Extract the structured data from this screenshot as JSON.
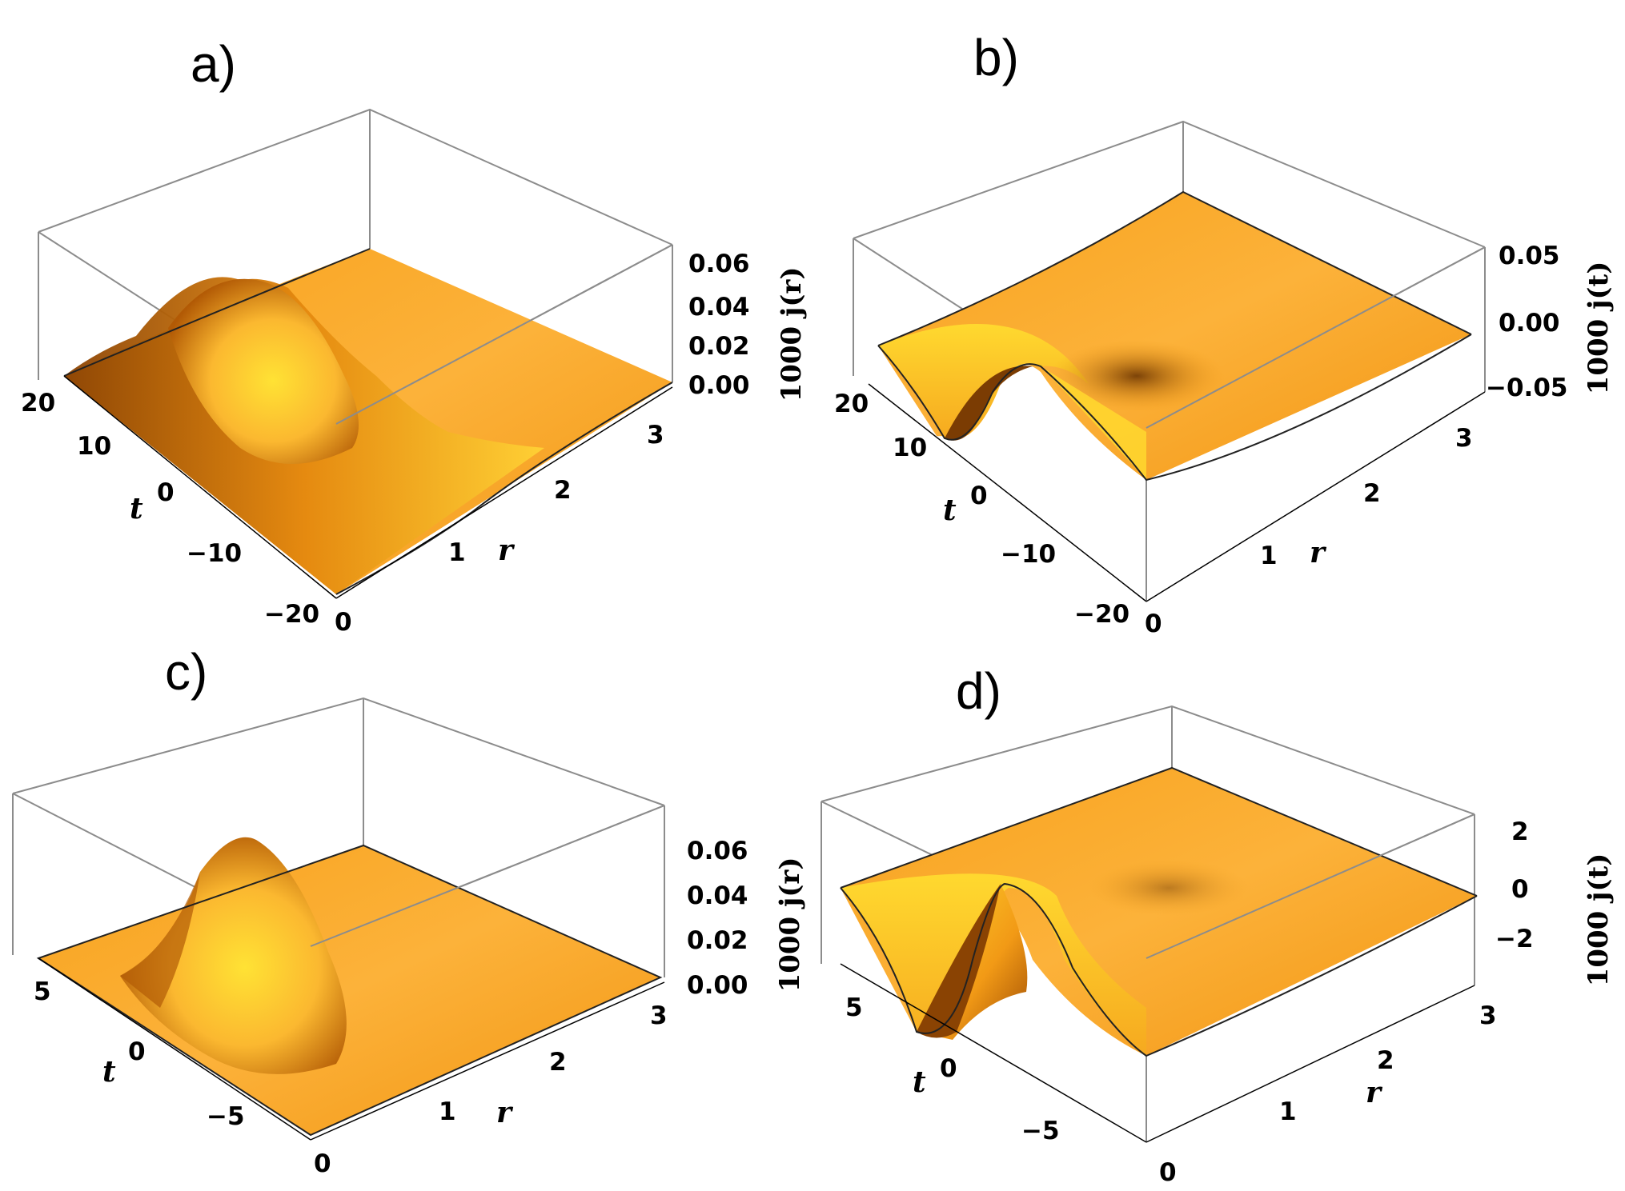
{
  "figure": {
    "panels": [
      {
        "id": "a",
        "label": "a)",
        "zlabel": "1000 j(r)",
        "r_ticks": [
          "0",
          "1",
          "2",
          "3"
        ],
        "t_ticks": [
          "−20",
          "−10",
          "0",
          "10",
          "20"
        ],
        "z_ticks": [
          "0.00",
          "0.02",
          "0.04",
          "0.06"
        ],
        "t_var": "t",
        "r_var": "r"
      },
      {
        "id": "b",
        "label": "b)",
        "zlabel": "1000 j(t)",
        "r_ticks": [
          "0",
          "1",
          "2",
          "3"
        ],
        "t_ticks": [
          "−20",
          "−10",
          "0",
          "10",
          "20"
        ],
        "z_ticks": [
          "−0.05",
          "0.00",
          "0.05"
        ],
        "t_var": "t",
        "r_var": "r"
      },
      {
        "id": "c",
        "label": "c)",
        "zlabel": "1000 j(r)",
        "r_ticks": [
          "0",
          "1",
          "2",
          "3"
        ],
        "t_ticks": [
          "−5",
          "0",
          "5"
        ],
        "z_ticks": [
          "0.00",
          "0.02",
          "0.04",
          "0.06"
        ],
        "t_var": "t",
        "r_var": "r"
      },
      {
        "id": "d",
        "label": "d)",
        "zlabel": "1000 j(t)",
        "r_ticks": [
          "0",
          "1",
          "2",
          "3"
        ],
        "t_ticks": [
          "−5",
          "0",
          "5"
        ],
        "z_ticks": [
          "−2",
          "0",
          "2"
        ],
        "t_var": "t",
        "r_var": "r"
      }
    ]
  },
  "chart_data": [
    {
      "type": "surface",
      "panel": "a)",
      "xlabel": "r",
      "ylabel": "t",
      "zlabel": "1000 j(r)",
      "xlim": [
        0,
        3
      ],
      "ylim": [
        -20,
        20
      ],
      "zlim": [
        0,
        0.06
      ],
      "peak": {
        "r": 0.3,
        "t": 0,
        "z": 0.06
      },
      "colors": {
        "surface": "#f5a623"
      }
    },
    {
      "type": "surface",
      "panel": "b)",
      "xlabel": "r",
      "ylabel": "t",
      "zlabel": "1000 j(t)",
      "xlim": [
        0,
        3
      ],
      "ylim": [
        -20,
        20
      ],
      "zlim": [
        -0.05,
        0.05
      ],
      "min": {
        "r": 0.3,
        "t": 8,
        "z": -0.05
      },
      "max": {
        "r": 0.3,
        "t": -8,
        "z": 0.05
      },
      "colors": {
        "surface": "#f5a623"
      }
    },
    {
      "type": "surface",
      "panel": "c)",
      "xlabel": "r",
      "ylabel": "t",
      "zlabel": "1000 j(r)",
      "xlim": [
        0,
        3
      ],
      "ylim": [
        -7,
        7
      ],
      "zlim": [
        0,
        0.07
      ],
      "peak": {
        "r": 0.4,
        "t": 0,
        "z": 0.07
      },
      "colors": {
        "surface": "#f5a623"
      }
    },
    {
      "type": "surface",
      "panel": "d)",
      "xlabel": "r",
      "ylabel": "t",
      "zlabel": "1000 j(t)",
      "xlim": [
        0,
        3
      ],
      "ylim": [
        -7,
        7
      ],
      "zlim": [
        -3,
        3
      ],
      "min": {
        "r": 0.3,
        "t": 1.5,
        "z": -3
      },
      "max": {
        "r": 0.3,
        "t": -1.5,
        "z": 1.5
      },
      "colors": {
        "surface": "#f5a623"
      }
    }
  ]
}
